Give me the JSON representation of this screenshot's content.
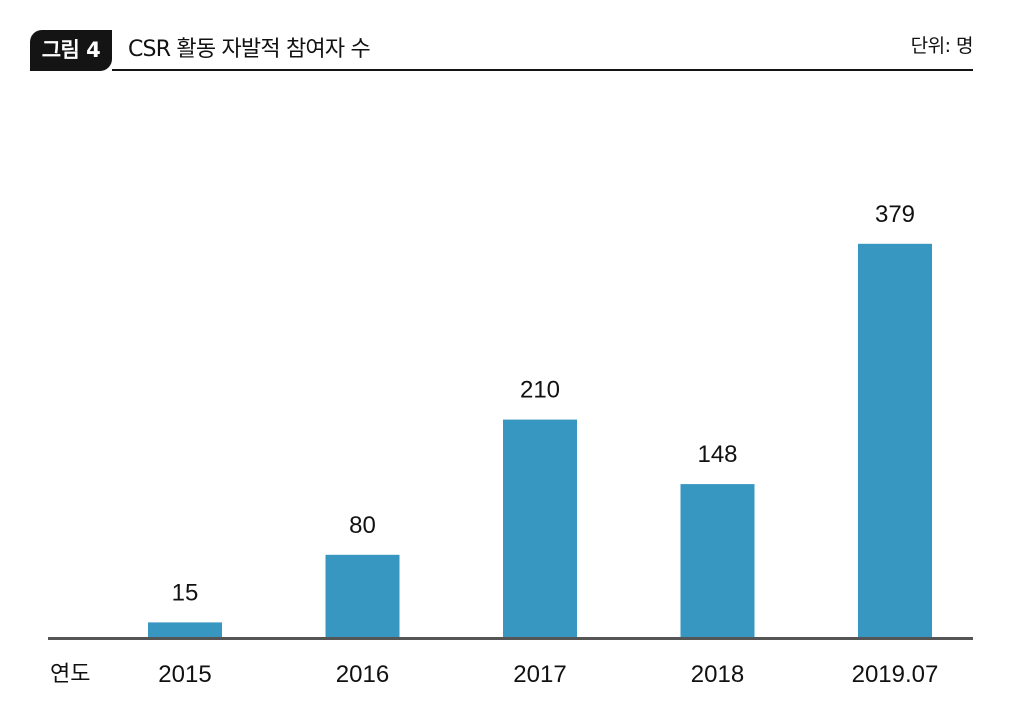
{
  "header": {
    "figure_label": "그림 4",
    "title": "CSR 활동 자발적 참여자 수",
    "unit": "단위: 명"
  },
  "chart_data": {
    "type": "bar",
    "title": "CSR 활동 자발적 참여자 수",
    "xlabel": "연도",
    "ylabel": "",
    "categories": [
      "2015",
      "2016",
      "2017",
      "2018",
      "2019.07"
    ],
    "values": [
      15,
      80,
      210,
      148,
      379
    ],
    "data_labels": [
      "15",
      "80",
      "210",
      "148",
      "379"
    ],
    "ylim": [
      0,
      400
    ],
    "grid": false,
    "legend": "none",
    "bar_color": "#3797c1",
    "axis_color": "#555555"
  }
}
